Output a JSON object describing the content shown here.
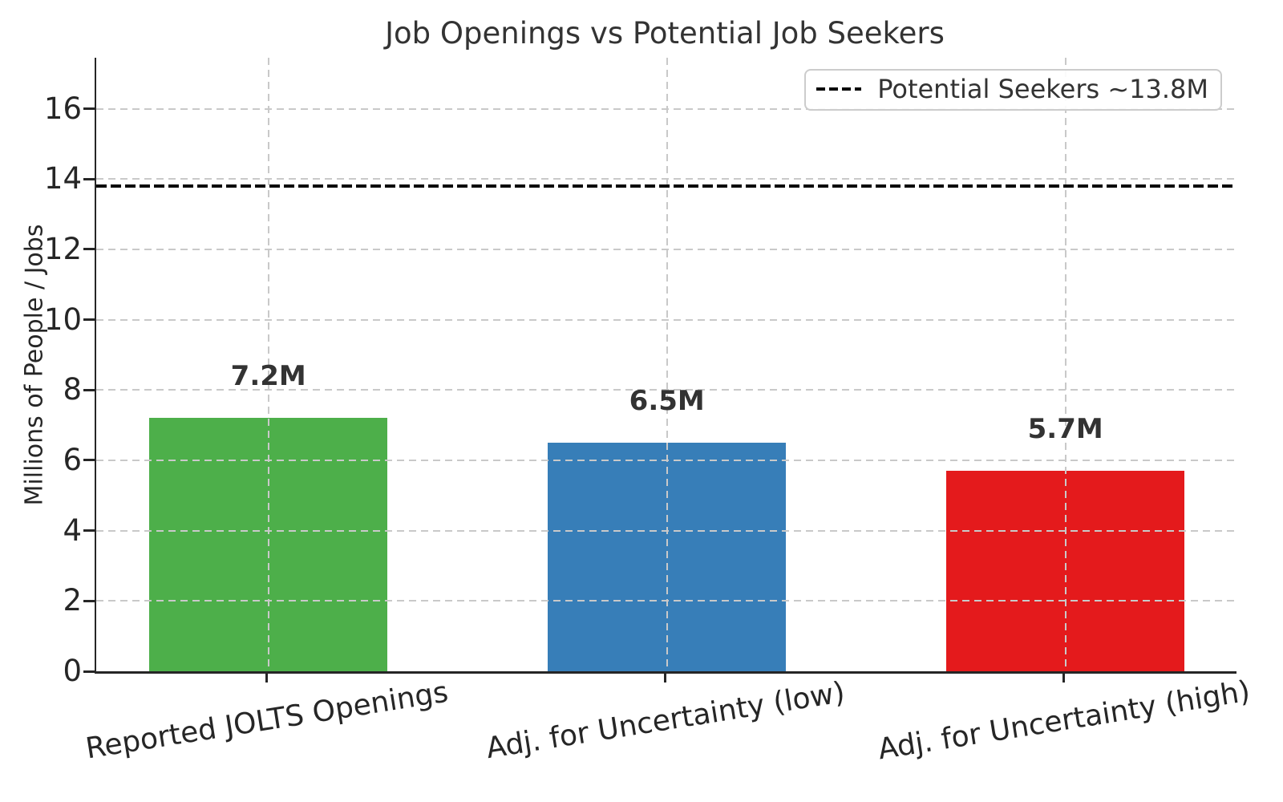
{
  "chart_data": {
    "type": "bar",
    "title": "Job Openings vs Potential Job Seekers",
    "ylabel": "Millions of People / Jobs",
    "xlabel": "",
    "categories": [
      "Reported JOLTS Openings",
      "Adj. for Uncertainty (low)",
      "Adj. for Uncertainty (high)"
    ],
    "values": [
      7.2,
      6.5,
      5.7
    ],
    "bar_labels": [
      "7.2M",
      "6.5M",
      "5.7M"
    ],
    "bar_colors": [
      "#4daf4a",
      "#377eb8",
      "#e41a1c"
    ],
    "yticks": [
      0,
      2,
      4,
      6,
      8,
      10,
      12,
      14,
      16
    ],
    "ylim": [
      0,
      17.45
    ],
    "grid": true,
    "grid_style": "dashed",
    "reference_line": {
      "value": 13.8,
      "color": "#000000",
      "style": "dashed"
    },
    "legend_label": "Potential Seekers ~13.8M",
    "legend_position": "upper-right",
    "spine_color": "#262626",
    "text_color": "#333333"
  }
}
